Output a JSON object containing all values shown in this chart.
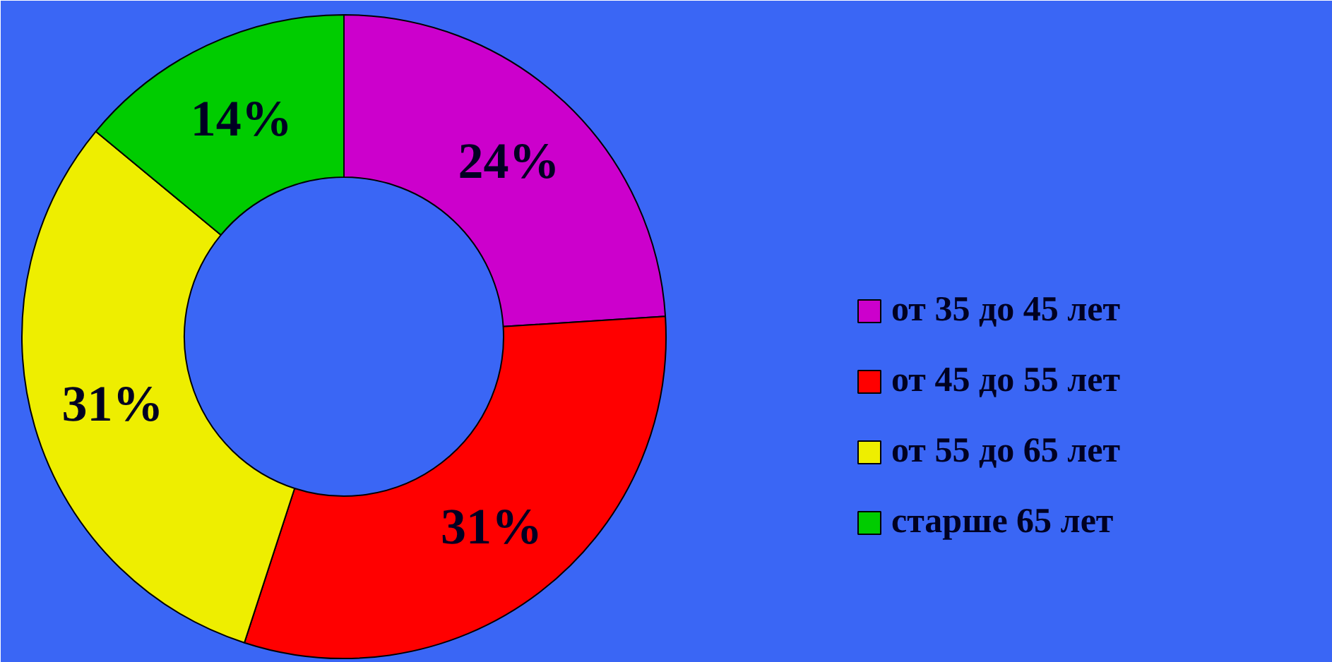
{
  "chart_data": {
    "type": "donut",
    "categories": [
      "от 35 до 45 лет",
      "от 45 до 55 лет",
      "от 55 до 65 лет",
      "старше 65 лет"
    ],
    "values": [
      24,
      31,
      31,
      14
    ],
    "colors": [
      "#cc00cc",
      "#ff0000",
      "#eeee00",
      "#00cc00"
    ],
    "value_labels": [
      "24%",
      "31%",
      "31%",
      "14%"
    ],
    "legend": "right"
  }
}
